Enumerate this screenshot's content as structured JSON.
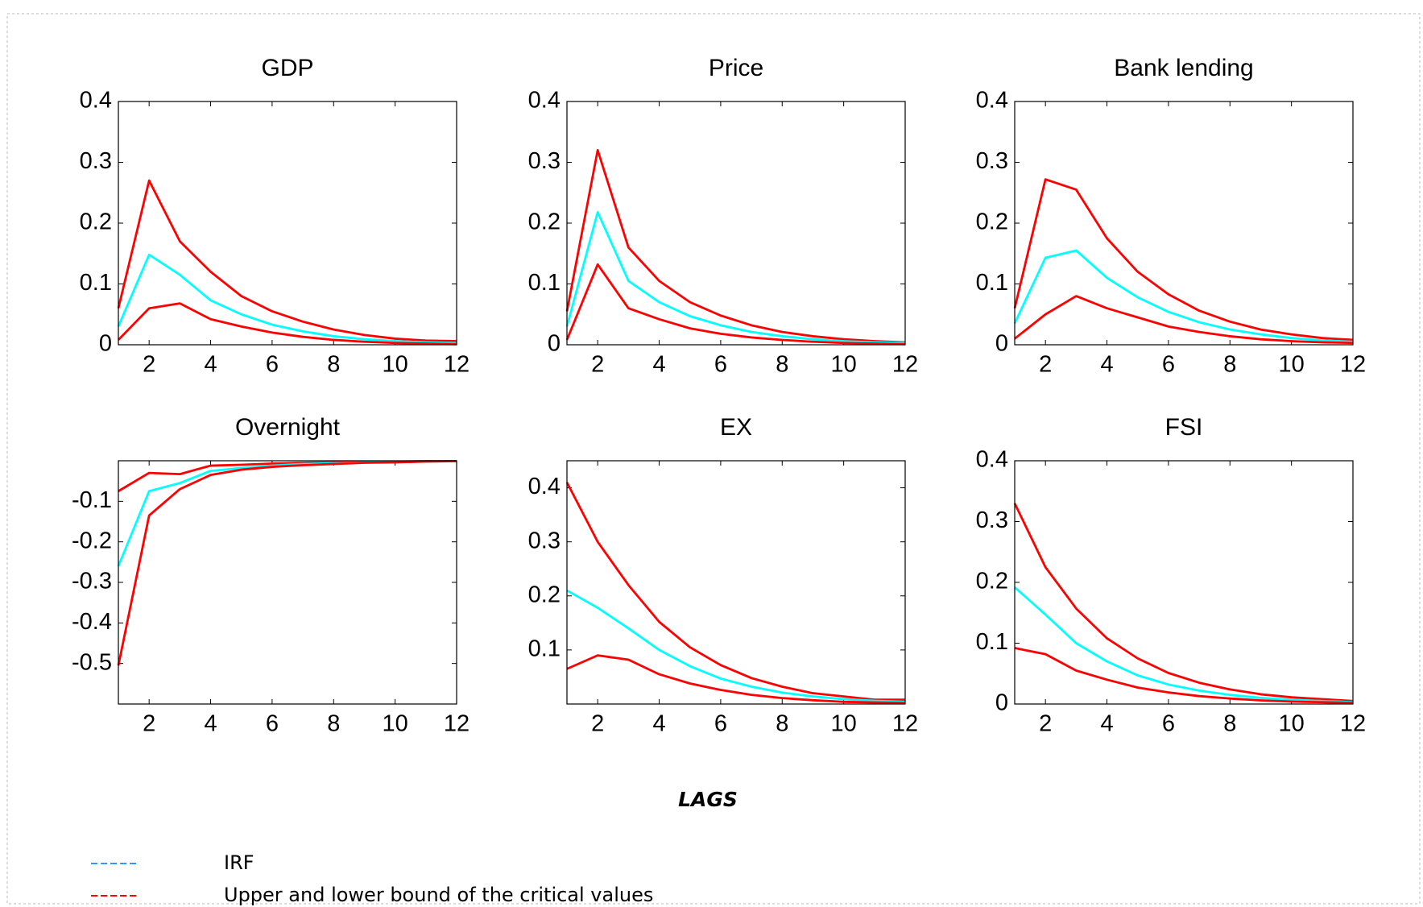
{
  "chart_data": [
    {
      "type": "line",
      "title": "GDP",
      "x": [
        1,
        2,
        3,
        4,
        5,
        6,
        7,
        8,
        9,
        10,
        11,
        12
      ],
      "xlim": [
        1,
        12
      ],
      "xticks": [
        2,
        4,
        6,
        8,
        10,
        12
      ],
      "ylim": [
        0,
        0.4
      ],
      "yticks": [
        0,
        0.1,
        0.2,
        0.3,
        0.4
      ],
      "series": [
        {
          "color": "#ff0000",
          "values": [
            0.06,
            0.27,
            0.17,
            0.12,
            0.08,
            0.055,
            0.038,
            0.025,
            0.016,
            0.01,
            0.007,
            0.006
          ]
        },
        {
          "color": "#00ffff",
          "values": [
            0.03,
            0.148,
            0.115,
            0.073,
            0.05,
            0.033,
            0.022,
            0.014,
            0.009,
            0.006,
            0.004,
            0.003
          ]
        },
        {
          "color": "#ff0000",
          "values": [
            0.008,
            0.06,
            0.068,
            0.042,
            0.03,
            0.02,
            0.013,
            0.008,
            0.005,
            0.003,
            0.002,
            0.001
          ]
        }
      ]
    },
    {
      "type": "line",
      "title": "Price",
      "x": [
        1,
        2,
        3,
        4,
        5,
        6,
        7,
        8,
        9,
        10,
        11,
        12
      ],
      "xlim": [
        1,
        12
      ],
      "xticks": [
        2,
        4,
        6,
        8,
        10,
        12
      ],
      "ylim": [
        0,
        0.4
      ],
      "yticks": [
        0,
        0.1,
        0.2,
        0.3,
        0.4
      ],
      "series": [
        {
          "color": "#ff0000",
          "values": [
            0.055,
            0.32,
            0.16,
            0.105,
            0.07,
            0.048,
            0.032,
            0.021,
            0.014,
            0.009,
            0.006,
            0.004
          ]
        },
        {
          "color": "#00ffff",
          "values": [
            0.03,
            0.218,
            0.105,
            0.07,
            0.047,
            0.032,
            0.021,
            0.014,
            0.009,
            0.006,
            0.004,
            0.003
          ]
        },
        {
          "color": "#ff0000",
          "values": [
            0.008,
            0.132,
            0.06,
            0.042,
            0.027,
            0.018,
            0.012,
            0.008,
            0.005,
            0.003,
            0.002,
            0.001
          ]
        }
      ]
    },
    {
      "type": "line",
      "title": "Bank lending",
      "x": [
        1,
        2,
        3,
        4,
        5,
        6,
        7,
        8,
        9,
        10,
        11,
        12
      ],
      "xlim": [
        1,
        12
      ],
      "xticks": [
        2,
        4,
        6,
        8,
        10,
        12
      ],
      "ylim": [
        0,
        0.4
      ],
      "yticks": [
        0,
        0.1,
        0.2,
        0.3,
        0.4
      ],
      "series": [
        {
          "color": "#ff0000",
          "values": [
            0.06,
            0.272,
            0.255,
            0.175,
            0.12,
            0.083,
            0.056,
            0.038,
            0.025,
            0.017,
            0.011,
            0.008
          ]
        },
        {
          "color": "#00ffff",
          "values": [
            0.035,
            0.143,
            0.155,
            0.11,
            0.078,
            0.054,
            0.037,
            0.025,
            0.017,
            0.011,
            0.007,
            0.005
          ]
        },
        {
          "color": "#ff0000",
          "values": [
            0.01,
            0.05,
            0.08,
            0.06,
            0.045,
            0.03,
            0.021,
            0.014,
            0.009,
            0.006,
            0.004,
            0.003
          ]
        }
      ]
    },
    {
      "type": "line",
      "title": "Overnight",
      "x": [
        1,
        2,
        3,
        4,
        5,
        6,
        7,
        8,
        9,
        10,
        11,
        12
      ],
      "xlim": [
        1,
        12
      ],
      "xticks": [
        2,
        4,
        6,
        8,
        10,
        12
      ],
      "ylim": [
        -0.6,
        0
      ],
      "yticks": [
        -0.5,
        -0.4,
        -0.3,
        -0.2,
        -0.1
      ],
      "series": [
        {
          "color": "#ff0000",
          "values": [
            -0.075,
            -0.03,
            -0.033,
            -0.012,
            -0.01,
            -0.007,
            -0.005,
            -0.004,
            -0.003,
            -0.002,
            -0.001,
            -0.001
          ]
        },
        {
          "color": "#00ffff",
          "values": [
            -0.26,
            -0.075,
            -0.055,
            -0.025,
            -0.018,
            -0.012,
            -0.008,
            -0.006,
            -0.004,
            -0.003,
            -0.002,
            -0.001
          ]
        },
        {
          "color": "#ff0000",
          "values": [
            -0.505,
            -0.135,
            -0.07,
            -0.035,
            -0.022,
            -0.015,
            -0.011,
            -0.008,
            -0.005,
            -0.004,
            -0.002,
            -0.001
          ]
        }
      ]
    },
    {
      "type": "line",
      "title": "EX",
      "x": [
        1,
        2,
        3,
        4,
        5,
        6,
        7,
        8,
        9,
        10,
        11,
        12
      ],
      "xlim": [
        1,
        12
      ],
      "xticks": [
        2,
        4,
        6,
        8,
        10,
        12
      ],
      "ylim": [
        0,
        0.45
      ],
      "yticks": [
        0.1,
        0.2,
        0.3,
        0.4
      ],
      "series": [
        {
          "color": "#ff0000",
          "values": [
            0.41,
            0.3,
            0.22,
            0.152,
            0.105,
            0.072,
            0.048,
            0.032,
            0.02,
            0.014,
            0.008,
            0.008
          ]
        },
        {
          "color": "#00ffff",
          "values": [
            0.21,
            0.178,
            0.14,
            0.1,
            0.07,
            0.047,
            0.032,
            0.021,
            0.014,
            0.009,
            0.006,
            0.004
          ]
        },
        {
          "color": "#ff0000",
          "values": [
            0.065,
            0.09,
            0.082,
            0.055,
            0.038,
            0.026,
            0.017,
            0.011,
            0.007,
            0.004,
            0.003,
            0.002
          ]
        }
      ]
    },
    {
      "type": "line",
      "title": "FSI",
      "x": [
        1,
        2,
        3,
        4,
        5,
        6,
        7,
        8,
        9,
        10,
        11,
        12
      ],
      "xlim": [
        1,
        12
      ],
      "xticks": [
        2,
        4,
        6,
        8,
        10,
        12
      ],
      "ylim": [
        0,
        0.4
      ],
      "yticks": [
        0,
        0.1,
        0.2,
        0.3,
        0.4
      ],
      "series": [
        {
          "color": "#ff0000",
          "values": [
            0.33,
            0.225,
            0.157,
            0.108,
            0.075,
            0.051,
            0.035,
            0.024,
            0.016,
            0.011,
            0.008,
            0.005
          ]
        },
        {
          "color": "#00ffff",
          "values": [
            0.192,
            0.147,
            0.1,
            0.07,
            0.047,
            0.032,
            0.022,
            0.015,
            0.01,
            0.007,
            0.005,
            0.003
          ]
        },
        {
          "color": "#ff0000",
          "values": [
            0.092,
            0.082,
            0.055,
            0.04,
            0.027,
            0.019,
            0.013,
            0.009,
            0.006,
            0.004,
            0.003,
            0.002
          ]
        }
      ]
    }
  ],
  "x_axis_label": "LAGS",
  "legend": [
    {
      "label": "IRF",
      "color": "#3399ff"
    },
    {
      "label": "Upper and lower bound of the critical values",
      "color": "#ff0000"
    }
  ]
}
